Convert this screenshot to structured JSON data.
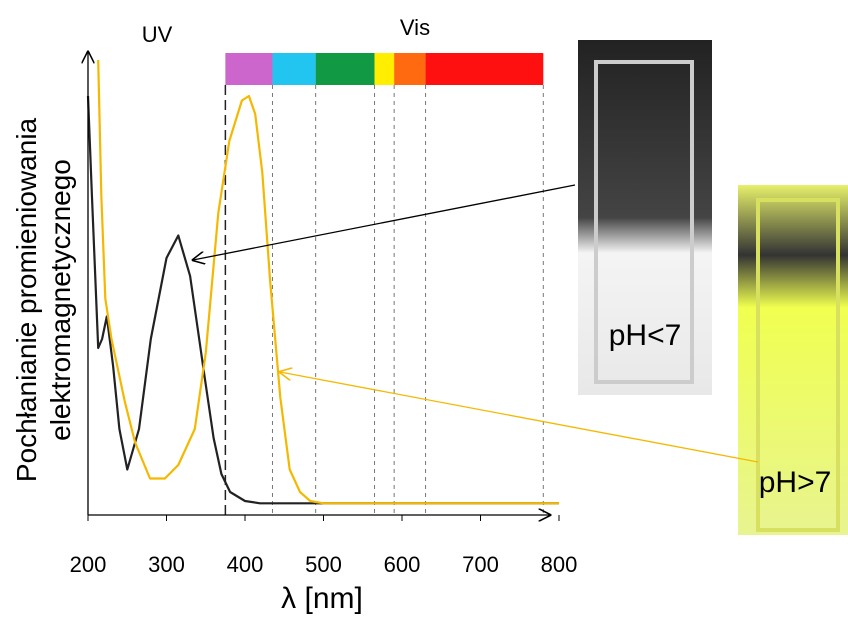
{
  "chart_data": {
    "type": "line",
    "y_label_lines": [
      "Pochłanianie promieniowania",
      "elektromagnetycznego"
    ],
    "x_label": "λ [nm]",
    "region_labels": [
      "UV",
      "Vis"
    ],
    "photo_labels": [
      "pH<7",
      "pH>7"
    ],
    "xlim": [
      200,
      800
    ],
    "ylim": [
      0,
      100
    ],
    "xticks": [
      200,
      300,
      400,
      500,
      600,
      700,
      800
    ],
    "spectrum": [
      {
        "from": 375,
        "to": 435,
        "color": "#cc66cc"
      },
      {
        "from": 435,
        "to": 490,
        "color": "#22c4f0"
      },
      {
        "from": 490,
        "to": 565,
        "color": "#119944"
      },
      {
        "from": 565,
        "to": 590,
        "color": "#ffee00"
      },
      {
        "from": 590,
        "to": 630,
        "color": "#ff6a10"
      },
      {
        "from": 630,
        "to": 780,
        "color": "#ff1010"
      }
    ],
    "series": [
      {
        "name": "pH<7",
        "color": "#222222",
        "x": [
          200,
          205,
          213,
          218,
          224,
          232,
          240,
          250,
          265,
          280,
          300,
          315,
          330,
          340,
          349,
          360,
          370,
          381,
          400,
          419,
          500,
          600,
          700,
          800
        ],
        "values": [
          92,
          70,
          36,
          38,
          43,
          32,
          18,
          9,
          18,
          38,
          56,
          61,
          52,
          40,
          29,
          16,
          8,
          4,
          2,
          1.5,
          1.5,
          1.5,
          1.5,
          1.5
        ]
      },
      {
        "name": "pH>7",
        "color": "#f5b800",
        "x": [
          213,
          217,
          222,
          230,
          247,
          260,
          279,
          298,
          315,
          336,
          350,
          366,
          380,
          396,
          405,
          413,
          422,
          432,
          445,
          457,
          470,
          483,
          500,
          600,
          700,
          800
        ],
        "values": [
          100,
          70,
          47,
          38,
          24,
          15,
          7,
          7,
          10,
          18,
          35,
          66,
          82,
          91,
          92,
          88,
          75,
          51,
          25,
          9,
          4,
          2,
          1.5,
          1.5,
          1.5,
          1.5
        ]
      }
    ]
  }
}
